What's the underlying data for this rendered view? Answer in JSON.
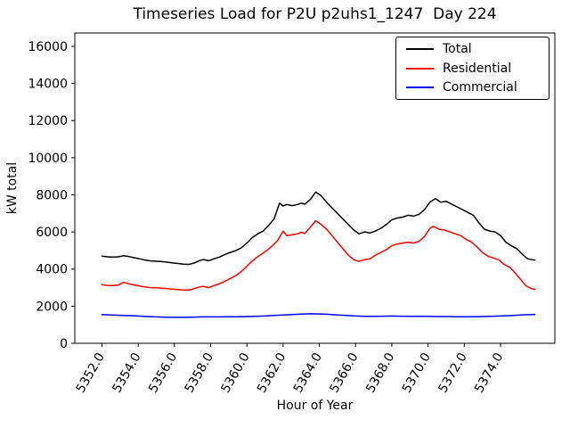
{
  "chart": {
    "title": "Timeseries Load for P2U p2uhs1_1247  Day 224",
    "xlabel": "Hour of Year",
    "ylabel": "kW total"
  },
  "chart_data": {
    "type": "line",
    "title": "Timeseries Load for P2U p2uhs1_1247  Day 224",
    "xlabel": "Hour of Year",
    "ylabel": "kW total",
    "xlim": [
      5350.5,
      5377.0
    ],
    "ylim": [
      0,
      16720
    ],
    "grid": false,
    "legend_position": "upper right",
    "x_ticks": [
      5352,
      5354,
      5356,
      5358,
      5360,
      5362,
      5364,
      5366,
      5368,
      5370,
      5372,
      5374
    ],
    "x_tick_labels": [
      "5352.0",
      "5354.0",
      "5356.0",
      "5358.0",
      "5360.0",
      "5362.0",
      "5364.0",
      "5366.0",
      "5368.0",
      "5370.0",
      "5372.0",
      "5374.0"
    ],
    "y_ticks": [
      0,
      2000,
      4000,
      6000,
      8000,
      10000,
      12000,
      14000,
      16000
    ],
    "y_tick_labels": [
      "0",
      "2000",
      "4000",
      "6000",
      "8000",
      "10000",
      "12000",
      "14000",
      "16000"
    ],
    "series": [
      {
        "name": "Total",
        "color": "#000000",
        "points": [
          [
            5352.0,
            4700
          ],
          [
            5352.3,
            4660
          ],
          [
            5352.6,
            4640
          ],
          [
            5352.9,
            4660
          ],
          [
            5353.2,
            4720
          ],
          [
            5353.5,
            4670
          ],
          [
            5353.8,
            4610
          ],
          [
            5354.1,
            4550
          ],
          [
            5354.4,
            4480
          ],
          [
            5354.7,
            4440
          ],
          [
            5355.0,
            4420
          ],
          [
            5355.3,
            4400
          ],
          [
            5355.6,
            4370
          ],
          [
            5355.9,
            4330
          ],
          [
            5356.2,
            4300
          ],
          [
            5356.5,
            4260
          ],
          [
            5356.8,
            4250
          ],
          [
            5357.1,
            4330
          ],
          [
            5357.4,
            4460
          ],
          [
            5357.6,
            4510
          ],
          [
            5357.9,
            4450
          ],
          [
            5358.2,
            4560
          ],
          [
            5358.5,
            4650
          ],
          [
            5358.8,
            4790
          ],
          [
            5359.1,
            4900
          ],
          [
            5359.4,
            5000
          ],
          [
            5359.7,
            5150
          ],
          [
            5360.0,
            5400
          ],
          [
            5360.3,
            5700
          ],
          [
            5360.6,
            5900
          ],
          [
            5360.9,
            6050
          ],
          [
            5361.2,
            6350
          ],
          [
            5361.5,
            6700
          ],
          [
            5361.8,
            7550
          ],
          [
            5362.0,
            7400
          ],
          [
            5362.2,
            7480
          ],
          [
            5362.5,
            7420
          ],
          [
            5362.8,
            7480
          ],
          [
            5363.0,
            7550
          ],
          [
            5363.2,
            7500
          ],
          [
            5363.5,
            7750
          ],
          [
            5363.8,
            8150
          ],
          [
            5364.1,
            7950
          ],
          [
            5364.4,
            7600
          ],
          [
            5364.7,
            7300
          ],
          [
            5365.0,
            7000
          ],
          [
            5365.3,
            6700
          ],
          [
            5365.6,
            6400
          ],
          [
            5365.9,
            6100
          ],
          [
            5366.2,
            5900
          ],
          [
            5366.5,
            6000
          ],
          [
            5366.8,
            5950
          ],
          [
            5367.1,
            6050
          ],
          [
            5367.4,
            6200
          ],
          [
            5367.7,
            6400
          ],
          [
            5368.0,
            6650
          ],
          [
            5368.3,
            6750
          ],
          [
            5368.6,
            6800
          ],
          [
            5368.9,
            6900
          ],
          [
            5369.2,
            6850
          ],
          [
            5369.5,
            6950
          ],
          [
            5369.8,
            7200
          ],
          [
            5370.1,
            7600
          ],
          [
            5370.4,
            7800
          ],
          [
            5370.7,
            7600
          ],
          [
            5371.0,
            7650
          ],
          [
            5371.3,
            7500
          ],
          [
            5371.6,
            7350
          ],
          [
            5371.9,
            7200
          ],
          [
            5372.2,
            7050
          ],
          [
            5372.5,
            6900
          ],
          [
            5372.8,
            6500
          ],
          [
            5373.1,
            6150
          ],
          [
            5373.4,
            6050
          ],
          [
            5373.7,
            6000
          ],
          [
            5374.0,
            5800
          ],
          [
            5374.3,
            5450
          ],
          [
            5374.6,
            5250
          ],
          [
            5374.9,
            5100
          ],
          [
            5375.2,
            4800
          ],
          [
            5375.5,
            4550
          ],
          [
            5375.9,
            4480
          ]
        ]
      },
      {
        "name": "Residential",
        "color": "#ff0000",
        "points": [
          [
            5352.0,
            3150
          ],
          [
            5352.3,
            3120
          ],
          [
            5352.6,
            3110
          ],
          [
            5352.9,
            3140
          ],
          [
            5353.2,
            3280
          ],
          [
            5353.5,
            3200
          ],
          [
            5353.8,
            3140
          ],
          [
            5354.1,
            3080
          ],
          [
            5354.4,
            3030
          ],
          [
            5354.7,
            3000
          ],
          [
            5355.0,
            2990
          ],
          [
            5355.3,
            2970
          ],
          [
            5355.6,
            2950
          ],
          [
            5355.9,
            2920
          ],
          [
            5356.2,
            2890
          ],
          [
            5356.5,
            2870
          ],
          [
            5356.8,
            2870
          ],
          [
            5357.1,
            2950
          ],
          [
            5357.4,
            3040
          ],
          [
            5357.6,
            3070
          ],
          [
            5357.9,
            3000
          ],
          [
            5358.2,
            3120
          ],
          [
            5358.5,
            3220
          ],
          [
            5358.7,
            3300
          ],
          [
            5359.0,
            3450
          ],
          [
            5359.3,
            3600
          ],
          [
            5359.6,
            3800
          ],
          [
            5359.9,
            4050
          ],
          [
            5360.2,
            4350
          ],
          [
            5360.5,
            4600
          ],
          [
            5360.8,
            4800
          ],
          [
            5361.1,
            5000
          ],
          [
            5361.4,
            5250
          ],
          [
            5361.7,
            5550
          ],
          [
            5362.0,
            6050
          ],
          [
            5362.2,
            5800
          ],
          [
            5362.5,
            5850
          ],
          [
            5362.8,
            5900
          ],
          [
            5363.0,
            5980
          ],
          [
            5363.2,
            5920
          ],
          [
            5363.5,
            6250
          ],
          [
            5363.8,
            6600
          ],
          [
            5364.1,
            6400
          ],
          [
            5364.4,
            6150
          ],
          [
            5364.7,
            5800
          ],
          [
            5365.0,
            5450
          ],
          [
            5365.3,
            5100
          ],
          [
            5365.6,
            4750
          ],
          [
            5365.9,
            4500
          ],
          [
            5366.2,
            4420
          ],
          [
            5366.5,
            4500
          ],
          [
            5366.8,
            4550
          ],
          [
            5367.1,
            4750
          ],
          [
            5367.4,
            4900
          ],
          [
            5367.7,
            5050
          ],
          [
            5368.0,
            5250
          ],
          [
            5368.3,
            5350
          ],
          [
            5368.6,
            5400
          ],
          [
            5368.9,
            5450
          ],
          [
            5369.2,
            5400
          ],
          [
            5369.5,
            5500
          ],
          [
            5369.8,
            5750
          ],
          [
            5370.1,
            6200
          ],
          [
            5370.3,
            6300
          ],
          [
            5370.6,
            6150
          ],
          [
            5370.9,
            6100
          ],
          [
            5371.2,
            6000
          ],
          [
            5371.5,
            5900
          ],
          [
            5371.8,
            5800
          ],
          [
            5372.1,
            5600
          ],
          [
            5372.4,
            5450
          ],
          [
            5372.7,
            5200
          ],
          [
            5373.0,
            4900
          ],
          [
            5373.3,
            4700
          ],
          [
            5373.6,
            4600
          ],
          [
            5373.9,
            4500
          ],
          [
            5374.2,
            4250
          ],
          [
            5374.5,
            4100
          ],
          [
            5374.8,
            3800
          ],
          [
            5375.1,
            3450
          ],
          [
            5375.4,
            3100
          ],
          [
            5375.7,
            2950
          ],
          [
            5375.9,
            2900
          ]
        ]
      },
      {
        "name": "Commercial",
        "color": "#0000ff",
        "points": [
          [
            5352.0,
            1550
          ],
          [
            5352.5,
            1530
          ],
          [
            5353.0,
            1510
          ],
          [
            5353.5,
            1490
          ],
          [
            5354.0,
            1470
          ],
          [
            5354.5,
            1440
          ],
          [
            5355.0,
            1420
          ],
          [
            5355.5,
            1410
          ],
          [
            5356.0,
            1400
          ],
          [
            5356.5,
            1400
          ],
          [
            5357.0,
            1410
          ],
          [
            5357.5,
            1420
          ],
          [
            5358.0,
            1420
          ],
          [
            5358.5,
            1420
          ],
          [
            5359.0,
            1430
          ],
          [
            5359.5,
            1430
          ],
          [
            5360.0,
            1440
          ],
          [
            5360.5,
            1450
          ],
          [
            5361.0,
            1470
          ],
          [
            5361.5,
            1500
          ],
          [
            5362.0,
            1530
          ],
          [
            5362.5,
            1550
          ],
          [
            5363.0,
            1570
          ],
          [
            5363.5,
            1590
          ],
          [
            5364.0,
            1580
          ],
          [
            5364.5,
            1560
          ],
          [
            5365.0,
            1530
          ],
          [
            5365.5,
            1500
          ],
          [
            5366.0,
            1470
          ],
          [
            5366.5,
            1450
          ],
          [
            5367.0,
            1450
          ],
          [
            5367.5,
            1460
          ],
          [
            5368.0,
            1470
          ],
          [
            5368.5,
            1460
          ],
          [
            5369.0,
            1450
          ],
          [
            5369.5,
            1450
          ],
          [
            5370.0,
            1450
          ],
          [
            5370.5,
            1440
          ],
          [
            5371.0,
            1440
          ],
          [
            5371.5,
            1430
          ],
          [
            5372.0,
            1430
          ],
          [
            5372.5,
            1430
          ],
          [
            5373.0,
            1440
          ],
          [
            5373.5,
            1450
          ],
          [
            5374.0,
            1470
          ],
          [
            5374.5,
            1490
          ],
          [
            5375.0,
            1520
          ],
          [
            5375.5,
            1540
          ],
          [
            5375.9,
            1550
          ]
        ]
      }
    ]
  }
}
